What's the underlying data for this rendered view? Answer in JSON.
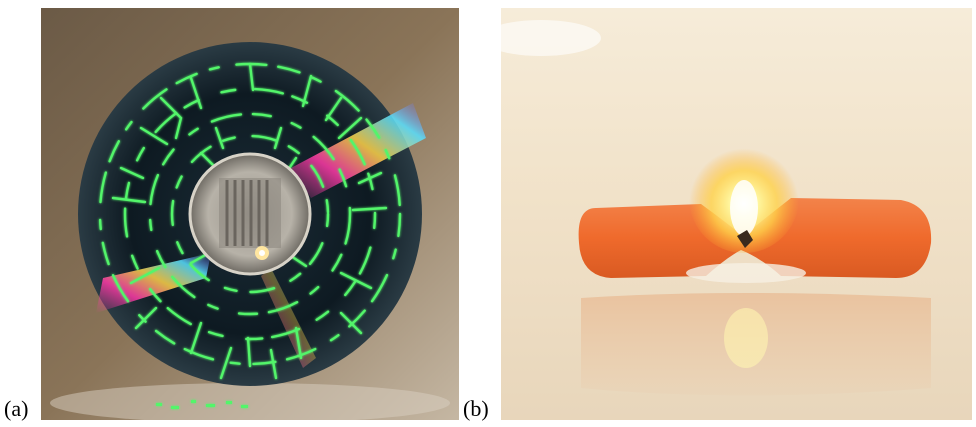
{
  "panels": [
    {
      "label": "(a)",
      "image_kind": "photo",
      "subject": "cd-disc-with-glowing-cracks",
      "colors": {
        "background": "#8a7458",
        "disc": "#0f1c26",
        "cracks": "#52f56a",
        "hub": "#b7b2a8",
        "rainbow": [
          "#ff3aa7",
          "#ffd44a",
          "#58e0ff",
          "#7a5bff"
        ]
      }
    },
    {
      "label": "(b)",
      "image_kind": "photo",
      "subject": "burning-orange-dogbone-sample",
      "colors": {
        "background": "#f1e2c9",
        "sample": "#ef6a2c",
        "flame": "#fff06a",
        "reflection": "#e9c09b"
      }
    }
  ]
}
